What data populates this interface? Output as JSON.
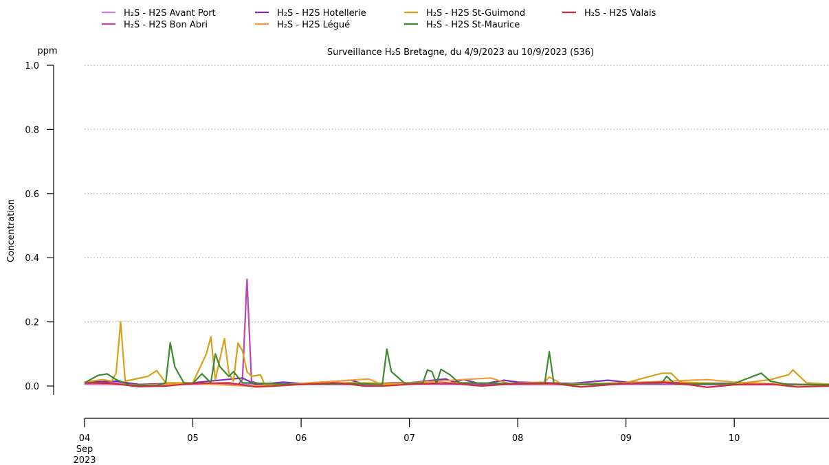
{
  "chart_data": {
    "type": "line",
    "title": "Surveillance H₂S Bretagne, du 4/9/2023 au 10/9/2023 (S36)",
    "ylabel": "Concentration",
    "yunit": "ppm",
    "ylim": [
      0.0,
      1.0
    ],
    "yticks": [
      "0.0",
      "0.2",
      "0.4",
      "0.6",
      "0.8",
      "1.0"
    ],
    "xlim": [
      "2023-09-04",
      "2023-09-10T21:00"
    ],
    "xticks": [
      {
        "date": "2023-09-04",
        "label": "04",
        "sub1": "Sep",
        "sub2": "2023"
      },
      {
        "date": "2023-09-05",
        "label": "05"
      },
      {
        "date": "2023-09-06",
        "label": "06"
      },
      {
        "date": "2023-09-07",
        "label": "07"
      },
      {
        "date": "2023-09-08",
        "label": "08"
      },
      {
        "date": "2023-09-09",
        "label": "09"
      },
      {
        "date": "2023-09-10",
        "label": "10"
      }
    ],
    "grid": "horizontal dotted",
    "legend_position": "top-left",
    "series": [
      {
        "name": "H₂S - H2S Avant Port",
        "color": "#c77ee0",
        "points": [
          [
            "2023-09-04T00:00",
            0.005
          ],
          [
            "2023-09-04T12:00",
            0.004
          ],
          [
            "2023-09-05T00:00",
            0.005
          ],
          [
            "2023-09-05T12:00",
            0.006
          ],
          [
            "2023-09-06T00:00",
            0.005
          ],
          [
            "2023-09-06T12:00",
            0.005
          ],
          [
            "2023-09-07T00:00",
            0.006
          ],
          [
            "2023-09-07T12:00",
            0.005
          ],
          [
            "2023-09-08T00:00",
            0.005
          ],
          [
            "2023-09-08T12:00",
            0.004
          ],
          [
            "2023-09-09T00:00",
            0.005
          ],
          [
            "2023-09-09T12:00",
            0.005
          ],
          [
            "2023-09-10T00:00",
            0.004
          ],
          [
            "2023-09-10T12:00",
            0.004
          ],
          [
            "2023-09-10T21:00",
            0.004
          ]
        ]
      },
      {
        "name": "H₂S - H2S Bon Abri",
        "color": "#b847b0",
        "points": [
          [
            "2023-09-04T00:00",
            0.008
          ],
          [
            "2023-09-04T06:00",
            0.01
          ],
          [
            "2023-09-04T12:00",
            0.003
          ],
          [
            "2023-09-05T00:00",
            0.006
          ],
          [
            "2023-09-05T06:00",
            0.008
          ],
          [
            "2023-09-05T10:00",
            0.004
          ],
          [
            "2023-09-05T11:00",
            0.02
          ],
          [
            "2023-09-05T12:00",
            0.333
          ],
          [
            "2023-09-05T13:00",
            0.015
          ],
          [
            "2023-09-05T15:00",
            0.005
          ],
          [
            "2023-09-06T00:00",
            0.005
          ],
          [
            "2023-09-06T12:00",
            0.005
          ],
          [
            "2023-09-07T00:00",
            0.006
          ],
          [
            "2023-09-08T00:00",
            0.005
          ],
          [
            "2023-09-09T00:00",
            0.006
          ],
          [
            "2023-09-10T00:00",
            0.005
          ],
          [
            "2023-09-10T21:00",
            0.004
          ]
        ]
      },
      {
        "name": "H₂S - H2S Hotellerie",
        "color": "#7b2fbe",
        "points": [
          [
            "2023-09-04T00:00",
            0.012
          ],
          [
            "2023-09-04T07:00",
            0.015
          ],
          [
            "2023-09-04T12:00",
            0.005
          ],
          [
            "2023-09-05T00:00",
            0.01
          ],
          [
            "2023-09-05T11:00",
            0.025
          ],
          [
            "2023-09-05T14:00",
            0.004
          ],
          [
            "2023-09-05T20:00",
            0.012
          ],
          [
            "2023-09-06T00:00",
            0.008
          ],
          [
            "2023-09-06T11:00",
            0.018
          ],
          [
            "2023-09-06T14:00",
            0.006
          ],
          [
            "2023-09-06T20:00",
            0.01
          ],
          [
            "2023-09-07T00:00",
            0.01
          ],
          [
            "2023-09-07T08:00",
            0.022
          ],
          [
            "2023-09-07T10:00",
            0.012
          ],
          [
            "2023-09-07T12:00",
            0.02
          ],
          [
            "2023-09-07T16:00",
            0.006
          ],
          [
            "2023-09-07T21:00",
            0.018
          ],
          [
            "2023-09-08T00:00",
            0.012
          ],
          [
            "2023-09-08T12:00",
            0.008
          ],
          [
            "2023-09-08T20:00",
            0.018
          ],
          [
            "2023-09-09T00:00",
            0.012
          ],
          [
            "2023-09-09T12:00",
            0.01
          ],
          [
            "2023-09-10T00:00",
            0.008
          ],
          [
            "2023-09-10T21:00",
            0.004
          ]
        ]
      },
      {
        "name": "H₂S - H2S Légué",
        "color": "#f5993a",
        "points": [
          [
            "2023-09-04T00:00",
            0.01
          ],
          [
            "2023-09-04T12:00",
            0.003
          ],
          [
            "2023-09-05T00:00",
            0.008
          ],
          [
            "2023-09-05T12:00",
            0.0
          ],
          [
            "2023-09-06T00:00",
            0.008
          ],
          [
            "2023-09-06T15:00",
            0.022
          ],
          [
            "2023-09-06T18:00",
            0.004
          ],
          [
            "2023-09-07T00:00",
            0.01
          ],
          [
            "2023-09-07T18:00",
            0.025
          ],
          [
            "2023-09-07T22:00",
            0.008
          ],
          [
            "2023-09-08T06:00",
            0.012
          ],
          [
            "2023-09-08T07:00",
            0.028
          ],
          [
            "2023-09-08T10:00",
            0.005
          ],
          [
            "2023-09-09T00:00",
            0.01
          ],
          [
            "2023-09-09T18:00",
            0.02
          ],
          [
            "2023-09-10T00:00",
            0.012
          ],
          [
            "2023-09-10T12:00",
            0.005
          ],
          [
            "2023-09-10T21:00",
            0.004
          ]
        ]
      },
      {
        "name": "H₂S - H2S St-Guimond",
        "color": "#d4a017",
        "points": [
          [
            "2023-09-04T00:00",
            0.012
          ],
          [
            "2023-09-04T04:00",
            0.02
          ],
          [
            "2023-09-04T06:00",
            0.015
          ],
          [
            "2023-09-04T07:00",
            0.04
          ],
          [
            "2023-09-04T08:00",
            0.2
          ],
          [
            "2023-09-04T09:00",
            0.015
          ],
          [
            "2023-09-04T14:00",
            0.03
          ],
          [
            "2023-09-04T16:00",
            0.048
          ],
          [
            "2023-09-04T18:00",
            0.01
          ],
          [
            "2023-09-05T00:00",
            0.01
          ],
          [
            "2023-09-05T03:00",
            0.1
          ],
          [
            "2023-09-05T04:00",
            0.153
          ],
          [
            "2023-09-05T05:00",
            0.02
          ],
          [
            "2023-09-05T07:00",
            0.148
          ],
          [
            "2023-09-05T08:00",
            0.04
          ],
          [
            "2023-09-05T09:00",
            0.015
          ],
          [
            "2023-09-05T10:00",
            0.134
          ],
          [
            "2023-09-05T11:00",
            0.11
          ],
          [
            "2023-09-05T12:00",
            0.045
          ],
          [
            "2023-09-05T13:00",
            0.03
          ],
          [
            "2023-09-05T15:00",
            0.035
          ],
          [
            "2023-09-05T16:00",
            0.002
          ],
          [
            "2023-09-06T00:00",
            0.008
          ],
          [
            "2023-09-06T12:00",
            0.01
          ],
          [
            "2023-09-07T00:00",
            0.008
          ],
          [
            "2023-09-07T12:00",
            0.01
          ],
          [
            "2023-09-08T00:00",
            0.008
          ],
          [
            "2023-09-08T12:00",
            0.006
          ],
          [
            "2023-09-09T00:00",
            0.01
          ],
          [
            "2023-09-09T08:00",
            0.04
          ],
          [
            "2023-09-09T10:00",
            0.04
          ],
          [
            "2023-09-09T12:00",
            0.012
          ],
          [
            "2023-09-10T00:00",
            0.006
          ],
          [
            "2023-09-10T08:00",
            0.02
          ],
          [
            "2023-09-10T12:00",
            0.035
          ],
          [
            "2023-09-10T13:00",
            0.05
          ],
          [
            "2023-09-10T16:00",
            0.01
          ],
          [
            "2023-09-10T21:00",
            0.006
          ]
        ]
      },
      {
        "name": "H₂S - H2S St-Maurice",
        "color": "#3c8a2e",
        "points": [
          [
            "2023-09-04T00:00",
            0.01
          ],
          [
            "2023-09-04T03:00",
            0.033
          ],
          [
            "2023-09-04T05:00",
            0.038
          ],
          [
            "2023-09-04T07:00",
            0.02
          ],
          [
            "2023-09-04T10:00",
            0.003
          ],
          [
            "2023-09-04T16:00",
            0.002
          ],
          [
            "2023-09-04T18:00",
            0.01
          ],
          [
            "2023-09-04T19:00",
            0.135
          ],
          [
            "2023-09-04T20:00",
            0.06
          ],
          [
            "2023-09-04T22:00",
            0.01
          ],
          [
            "2023-09-05T00:00",
            0.008
          ],
          [
            "2023-09-05T02:00",
            0.038
          ],
          [
            "2023-09-05T04:00",
            0.01
          ],
          [
            "2023-09-05T05:00",
            0.1
          ],
          [
            "2023-09-05T06:00",
            0.06
          ],
          [
            "2023-09-05T08:00",
            0.03
          ],
          [
            "2023-09-05T09:00",
            0.045
          ],
          [
            "2023-09-05T11:00",
            0.01
          ],
          [
            "2023-09-06T00:00",
            0.005
          ],
          [
            "2023-09-06T12:00",
            0.008
          ],
          [
            "2023-09-06T18:00",
            0.005
          ],
          [
            "2023-09-06T19:00",
            0.115
          ],
          [
            "2023-09-06T20:00",
            0.045
          ],
          [
            "2023-09-06T23:00",
            0.008
          ],
          [
            "2023-09-07T03:00",
            0.01
          ],
          [
            "2023-09-07T04:00",
            0.05
          ],
          [
            "2023-09-07T05:00",
            0.045
          ],
          [
            "2023-09-07T06:00",
            0.008
          ],
          [
            "2023-09-07T07:00",
            0.052
          ],
          [
            "2023-09-07T09:00",
            0.035
          ],
          [
            "2023-09-07T11:00",
            0.01
          ],
          [
            "2023-09-08T00:00",
            0.008
          ],
          [
            "2023-09-08T06:00",
            0.01
          ],
          [
            "2023-09-08T07:00",
            0.107
          ],
          [
            "2023-09-08T08:00",
            0.01
          ],
          [
            "2023-09-08T12:00",
            0.004
          ],
          [
            "2023-09-09T00:00",
            0.008
          ],
          [
            "2023-09-09T08:00",
            0.01
          ],
          [
            "2023-09-09T09:00",
            0.03
          ],
          [
            "2023-09-09T11:00",
            0.005
          ],
          [
            "2023-09-10T00:00",
            0.008
          ],
          [
            "2023-09-10T06:00",
            0.04
          ],
          [
            "2023-09-10T08:00",
            0.015
          ],
          [
            "2023-09-10T12:00",
            0.004
          ],
          [
            "2023-09-10T21:00",
            0.004
          ]
        ]
      },
      {
        "name": "H₂S - H2S Valais",
        "color": "#d62c3a",
        "points": [
          [
            "2023-09-04T00:00",
            0.01
          ],
          [
            "2023-09-04T06:00",
            0.008
          ],
          [
            "2023-09-04T12:00",
            -0.002
          ],
          [
            "2023-09-04T18:00",
            0.0
          ],
          [
            "2023-09-05T00:00",
            0.008
          ],
          [
            "2023-09-05T08:00",
            0.01
          ],
          [
            "2023-09-05T14:00",
            -0.003
          ],
          [
            "2023-09-05T18:00",
            0.0
          ],
          [
            "2023-09-06T00:00",
            0.005
          ],
          [
            "2023-09-06T08:00",
            0.01
          ],
          [
            "2023-09-06T14:00",
            0.0
          ],
          [
            "2023-09-06T18:00",
            0.0
          ],
          [
            "2023-09-07T00:00",
            0.005
          ],
          [
            "2023-09-07T08:00",
            0.01
          ],
          [
            "2023-09-07T16:00",
            0.0
          ],
          [
            "2023-09-08T00:00",
            0.008
          ],
          [
            "2023-09-08T08:00",
            0.008
          ],
          [
            "2023-09-08T14:00",
            -0.003
          ],
          [
            "2023-09-09T00:00",
            0.008
          ],
          [
            "2023-09-09T08:00",
            0.012
          ],
          [
            "2023-09-09T14:00",
            0.004
          ],
          [
            "2023-09-09T18:00",
            -0.004
          ],
          [
            "2023-09-10T00:00",
            0.004
          ],
          [
            "2023-09-10T08:00",
            0.006
          ],
          [
            "2023-09-10T14:00",
            -0.003
          ],
          [
            "2023-09-10T21:00",
            0.0
          ]
        ]
      }
    ]
  }
}
